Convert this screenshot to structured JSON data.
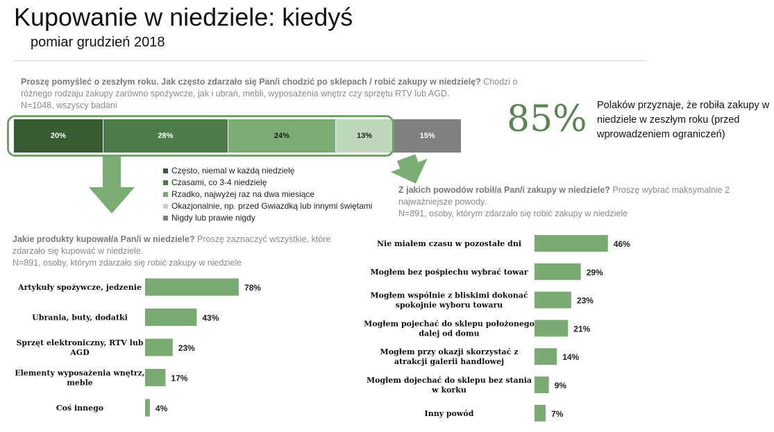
{
  "header": {
    "title": "Kupowanie w niedziele: kiedyś",
    "subtitle": "pomiar grudzień 2018"
  },
  "question1": {
    "bold": "Proszę pomyśleć o zeszłym roku. Jak często zdarzało się Pan/i chodzić po sklepach / robić zakupy w niedzielę?",
    "rest": " Chodzi o różnego rodzaju zakupy zarówno spożywcze, jak i ubrań, mebli, wyposażenia wnętrz czy sprzętu RTV lub AGD.",
    "base": "N=1048, wszyscy badani"
  },
  "summary": {
    "percent": "85%",
    "note": "Polaków przyznaje, że robiła zakupy w niedziele w zeszłym roku (przed wprowadzeniem ograniczeń)"
  },
  "question2": {
    "bold": "Jakie produkty kupował/a Pan/i w niedziele?",
    "rest": " Proszę zaznaczyć wszystkie, które zdarzało się kupować w niedziele.",
    "base": "N=891, osoby, którym zdarzało się robić zakupy w niedziele"
  },
  "question3": {
    "bold": "Z jakich powodów robił/a Pan/i zakupy w niedziele?",
    "rest": " Proszę wybrać maksymalnie 2 najważniejsze powody.",
    "base": "N=891, osoby, którym zdarzało się robić zakupy w niedziele"
  },
  "colors": {
    "c1": "#375a32",
    "c2": "#4d7c48",
    "c3": "#79ad74",
    "c4": "#bdd8ba",
    "c5": "#7f7f7f",
    "bar": "#7aab73"
  },
  "chart_data": [
    {
      "type": "bar",
      "orientation": "horizontal-stacked",
      "categories": [
        "Często, niemal w każdą niedzielę",
        "Czasami, co 3-4 niedzielę",
        "Rzadko, najwyżej raz na dwa miesiące",
        "Okazjonalnie, np. przed Gwiazdką lub innymi świętami",
        "Nigdy lub prawie nigdy"
      ],
      "values": [
        20,
        28,
        24,
        13,
        15
      ],
      "labels": [
        "20%",
        "28%",
        "24%",
        "13%",
        "15%"
      ],
      "legend": "right"
    },
    {
      "type": "bar",
      "orientation": "horizontal",
      "categories": [
        "Artykuły spożywcze, jedzenie",
        "Ubrania, buty, dodatki",
        "Sprzęt elektroniczny, RTV lub AGD",
        "Elementy wyposażenia wnętrz, meble",
        "Coś innego"
      ],
      "values": [
        78,
        43,
        23,
        17,
        4
      ],
      "labels": [
        "78%",
        "43%",
        "23%",
        "17%",
        "4%"
      ],
      "xlim": [
        0,
        100
      ]
    },
    {
      "type": "bar",
      "orientation": "horizontal",
      "categories": [
        "Nie miałem czasu w pozostałe dni",
        "Mogłem bez pośpiechu wybrać towar",
        "Mogłem wspólnie z bliskimi dokonać spokojnie wyboru towaru",
        "Mogłem pojechać do sklepu położonego dalej od domu",
        "Mogłem przy okazji skorzystać z atrakcji galerii handlowej",
        "Mogłem dojechać do sklepu bez stania w korku",
        "Inny powód"
      ],
      "values": [
        46,
        29,
        23,
        21,
        14,
        9,
        7
      ],
      "labels": [
        "46%",
        "29%",
        "23%",
        "21%",
        "14%",
        "9%",
        "7%"
      ],
      "xlim": [
        0,
        100
      ]
    }
  ]
}
